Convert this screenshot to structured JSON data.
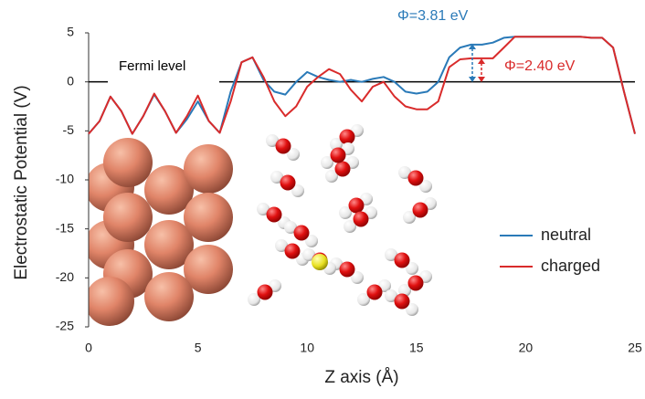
{
  "chart_data": {
    "type": "line",
    "x_label": "Z axis (Å)",
    "y_label": "Electrostatic Potential (V)",
    "x": [
      0,
      0.5,
      1,
      1.5,
      2,
      2.5,
      3,
      3.5,
      4,
      4.5,
      5,
      5.5,
      6,
      6.5,
      7,
      7.5,
      8,
      8.5,
      9,
      9.5,
      10,
      10.5,
      11,
      11.5,
      12,
      12.5,
      13,
      13.5,
      14,
      14.5,
      15,
      15.5,
      16,
      16.5,
      17,
      17.5,
      18,
      18.5,
      19,
      19.5,
      20,
      20.5,
      21,
      21.5,
      22,
      22.5,
      23,
      23.5,
      24,
      24.5,
      25
    ],
    "series": [
      {
        "name": "neutral",
        "color": "#2a7ab8",
        "values": [
          -5.3,
          -4,
          -1.5,
          -3,
          -5.3,
          -3.5,
          -1.3,
          -3,
          -5.2,
          -3.8,
          -2,
          -4,
          -5.2,
          -1,
          2,
          2.5,
          0.2,
          -1,
          -1.3,
          0,
          1,
          0.5,
          0.2,
          0,
          0.2,
          0,
          0.3,
          0.5,
          0,
          -1,
          -1.2,
          -1,
          0,
          2.5,
          3.5,
          3.8,
          3.8,
          4,
          4.5,
          4.6,
          4.6,
          4.6,
          4.6,
          4.6,
          4.6,
          4.6,
          4.5,
          4.5,
          3.5,
          -1,
          -5.3
        ]
      },
      {
        "name": "charged",
        "color": "#d92b2b",
        "values": [
          -5.3,
          -4,
          -1.5,
          -3,
          -5.3,
          -3.5,
          -1.2,
          -3,
          -5.2,
          -3.5,
          -1.4,
          -4,
          -5.2,
          -2,
          2,
          2.5,
          0.5,
          -2,
          -3.5,
          -2.5,
          -0.5,
          0.5,
          1.3,
          0.8,
          -0.8,
          -2,
          -0.5,
          0,
          -1.5,
          -2.5,
          -2.8,
          -2.8,
          -2,
          1.5,
          2.3,
          2.4,
          2.4,
          2.4,
          3.5,
          4.6,
          4.6,
          4.6,
          4.6,
          4.6,
          4.6,
          4.6,
          4.5,
          4.5,
          3.5,
          -1,
          -5.3
        ]
      }
    ],
    "annotations": [
      "Fermi level",
      "Φ=3.81 eV",
      "Φ=2.40 eV"
    ],
    "xlim": [
      0,
      25
    ],
    "xticks": [
      0,
      5,
      10,
      15,
      20,
      25
    ],
    "ylim": [
      -25,
      5
    ],
    "yticks": [
      -25,
      -20,
      -15,
      -10,
      -5,
      0,
      5
    ],
    "legend": "right"
  }
}
